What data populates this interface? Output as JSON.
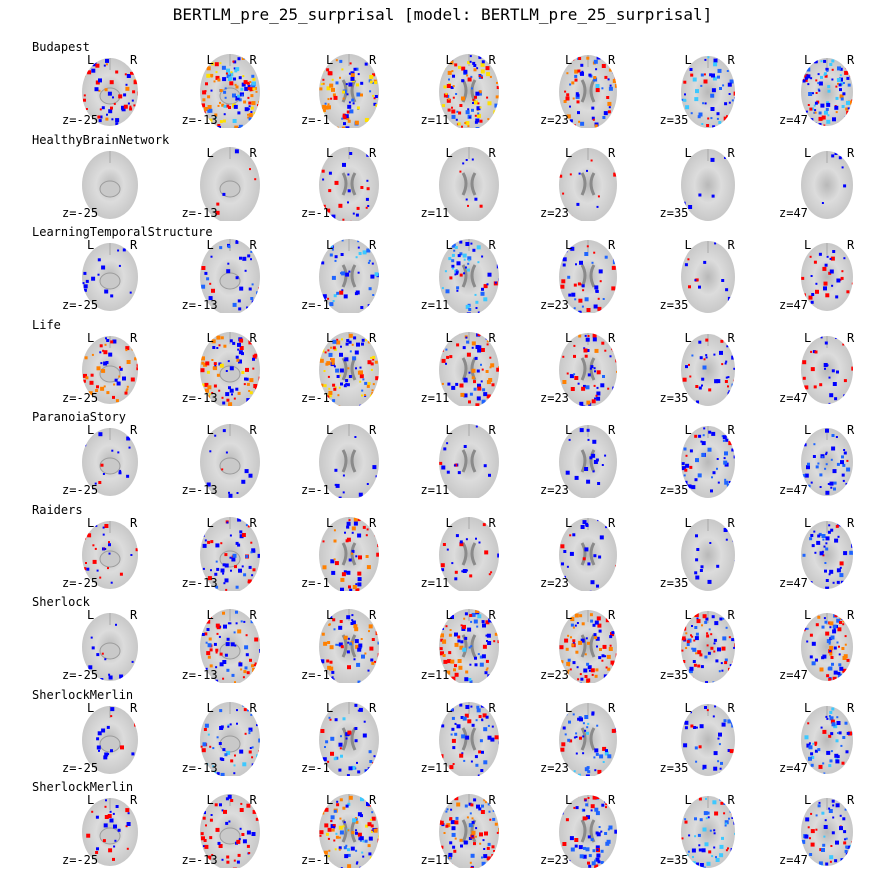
{
  "title": "BERTLM_pre_25_surprisal [model: BERTLM_pre_25_surprisal]",
  "hemisphere": {
    "left": "L",
    "right": "R"
  },
  "colors": {
    "positive_low": "#ff0000",
    "positive_mid": "#ff8000",
    "positive_high": "#ffe000",
    "negative_low": "#0000ff",
    "negative_mid": "#1e64ff",
    "negative_high": "#3cc8ff",
    "brain_light": "#dcdcdc",
    "brain_dark": "#8a8a8a"
  },
  "slices": [
    {
      "z_label": "z=-25",
      "z": -25
    },
    {
      "z_label": "z=-13",
      "z": -13
    },
    {
      "z_label": "z=-1",
      "z": -1
    },
    {
      "z_label": "z=11",
      "z": 11
    },
    {
      "z_label": "z=23",
      "z": 23
    },
    {
      "z_label": "z=35",
      "z": 35
    },
    {
      "z_label": "z=47",
      "z": 47
    }
  ],
  "datasets": [
    {
      "name": "Budapest",
      "activation": [
        [
          0.5,
          0.2
        ],
        [
          0.8,
          0.6
        ],
        [
          0.9,
          0.4
        ],
        [
          0.9,
          0.4
        ],
        [
          0.5,
          0.5
        ],
        [
          0.3,
          0.6
        ],
        [
          0.4,
          0.7
        ]
      ]
    },
    {
      "name": "HealthyBrainNetwork",
      "activation": [
        [
          0,
          0
        ],
        [
          0.05,
          0
        ],
        [
          0.1,
          0.2
        ],
        [
          0.05,
          0.05
        ],
        [
          0.05,
          0.05
        ],
        [
          0.02,
          0.05
        ],
        [
          0,
          0.1
        ]
      ]
    },
    {
      "name": "LearningTemporalStructure",
      "activation": [
        [
          0,
          0.15
        ],
        [
          0.05,
          0.4
        ],
        [
          0.05,
          0.5
        ],
        [
          0.1,
          0.6
        ],
        [
          0.15,
          0.35
        ],
        [
          0.15,
          0.1
        ],
        [
          0.3,
          0.15
        ]
      ]
    },
    {
      "name": "Life",
      "activation": [
        [
          0.6,
          0.05
        ],
        [
          0.7,
          0.25
        ],
        [
          0.9,
          0.3
        ],
        [
          0.5,
          0.3
        ],
        [
          0.4,
          0.3
        ],
        [
          0.15,
          0.3
        ],
        [
          0.2,
          0.2
        ]
      ]
    },
    {
      "name": "ParanoiaStory",
      "activation": [
        [
          0.05,
          0.15
        ],
        [
          0.05,
          0.15
        ],
        [
          0.05,
          0.15
        ],
        [
          0.05,
          0.2
        ],
        [
          0.05,
          0.25
        ],
        [
          0.05,
          0.4
        ],
        [
          0.05,
          0.45
        ]
      ]
    },
    {
      "name": "Raiders",
      "activation": [
        [
          0.2,
          0.1
        ],
        [
          0.3,
          0.3
        ],
        [
          0.5,
          0.2
        ],
        [
          0.1,
          0.15
        ],
        [
          0.1,
          0.25
        ],
        [
          0.05,
          0.1
        ],
        [
          0.1,
          0.35
        ]
      ]
    },
    {
      "name": "Sherlock",
      "activation": [
        [
          0.05,
          0.1
        ],
        [
          0.5,
          0.4
        ],
        [
          0.6,
          0.4
        ],
        [
          0.55,
          0.5
        ],
        [
          0.6,
          0.3
        ],
        [
          0.4,
          0.4
        ],
        [
          0.5,
          0.45
        ]
      ]
    },
    {
      "name": "SherlockMerlin",
      "activation": [
        [
          0.05,
          0.2
        ],
        [
          0.1,
          0.55
        ],
        [
          0.1,
          0.5
        ],
        [
          0.2,
          0.45
        ],
        [
          0.1,
          0.5
        ],
        [
          0.05,
          0.35
        ],
        [
          0.1,
          0.6
        ]
      ]
    },
    {
      "name": "SherlockMerlin",
      "activation": [
        [
          0.2,
          0.15
        ],
        [
          0.3,
          0.25
        ],
        [
          0.7,
          0.6
        ],
        [
          0.5,
          0.45
        ],
        [
          0.3,
          0.45
        ],
        [
          0.1,
          0.6
        ],
        [
          0.2,
          0.5
        ]
      ]
    }
  ]
}
